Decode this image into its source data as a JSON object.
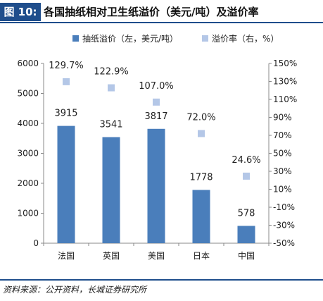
{
  "header": {
    "figure_label": "图 10:",
    "title": "各国抽纸相对卫生纸溢价（美元/吨）及溢价率"
  },
  "footer": {
    "source": "资料来源：公开资料，长城证券研究所"
  },
  "colors": {
    "bar": "#4a7ebb",
    "marker": "#b4c7e7",
    "accent": "#1f4e8c"
  },
  "chart_data": {
    "type": "bar",
    "categories": [
      "法国",
      "英国",
      "美国",
      "日本",
      "中国"
    ],
    "series": [
      {
        "name": "抽纸溢价（左，美元/吨）",
        "type": "bar",
        "axis": "left",
        "values": [
          3915,
          3541,
          3817,
          1778,
          578
        ],
        "labels": [
          "3915",
          "3541",
          "3817",
          "1778",
          "578"
        ]
      },
      {
        "name": "溢价率（右，%）",
        "type": "scatter",
        "axis": "right",
        "values": [
          129.7,
          122.9,
          107.0,
          72.0,
          24.6
        ],
        "labels": [
          "129.7%",
          "122.9%",
          "107.0%",
          "72.0%",
          "24.6%"
        ]
      }
    ],
    "y_left": {
      "lim": [
        0,
        6000
      ],
      "ticks": [
        "0",
        "1000",
        "2000",
        "3000",
        "4000",
        "5000",
        "6000"
      ]
    },
    "y_right": {
      "lim": [
        -50,
        150
      ],
      "ticks": [
        "-50%",
        "-30%",
        "-10%",
        "10%",
        "30%",
        "50%",
        "70%",
        "90%",
        "110%",
        "130%",
        "150%"
      ]
    },
    "legend_position": "top",
    "grid": false
  }
}
